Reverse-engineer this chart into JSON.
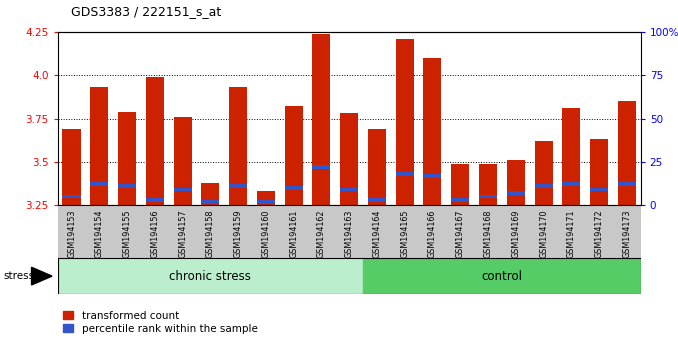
{
  "title": "GDS3383 / 222151_s_at",
  "samples": [
    "GSM194153",
    "GSM194154",
    "GSM194155",
    "GSM194156",
    "GSM194157",
    "GSM194158",
    "GSM194159",
    "GSM194160",
    "GSM194161",
    "GSM194162",
    "GSM194163",
    "GSM194164",
    "GSM194165",
    "GSM194166",
    "GSM194167",
    "GSM194168",
    "GSM194169",
    "GSM194170",
    "GSM194171",
    "GSM194172",
    "GSM194173"
  ],
  "red_values": [
    3.69,
    3.93,
    3.79,
    3.99,
    3.76,
    3.38,
    3.93,
    3.33,
    3.82,
    4.24,
    3.78,
    3.69,
    4.21,
    4.1,
    3.49,
    3.49,
    3.51,
    3.62,
    3.81,
    3.63,
    3.85
  ],
  "blue_values": [
    3.29,
    3.36,
    3.35,
    3.27,
    3.33,
    3.26,
    3.35,
    3.26,
    3.34,
    3.46,
    3.33,
    3.27,
    3.42,
    3.41,
    3.27,
    3.29,
    3.31,
    3.35,
    3.36,
    3.33,
    3.36
  ],
  "group_boundary": 10,
  "group1_label": "chronic stress",
  "group2_label": "control",
  "stress_label": "stress",
  "y_min": 3.25,
  "y_max": 4.25,
  "y_ticks": [
    3.25,
    3.5,
    3.75,
    4.0,
    4.25
  ],
  "y_ticks_right": [
    0,
    25,
    50,
    75,
    100
  ],
  "y_ticks_right_labels": [
    "0",
    "25",
    "50",
    "75",
    "100%"
  ],
  "bar_color_red": "#cc2200",
  "bar_color_blue": "#3355cc",
  "background_label": "#c8c8c8",
  "group1_bg": "#bbeecc",
  "group2_bg": "#55cc66",
  "bar_width": 0.65,
  "blue_bar_height": 0.022
}
